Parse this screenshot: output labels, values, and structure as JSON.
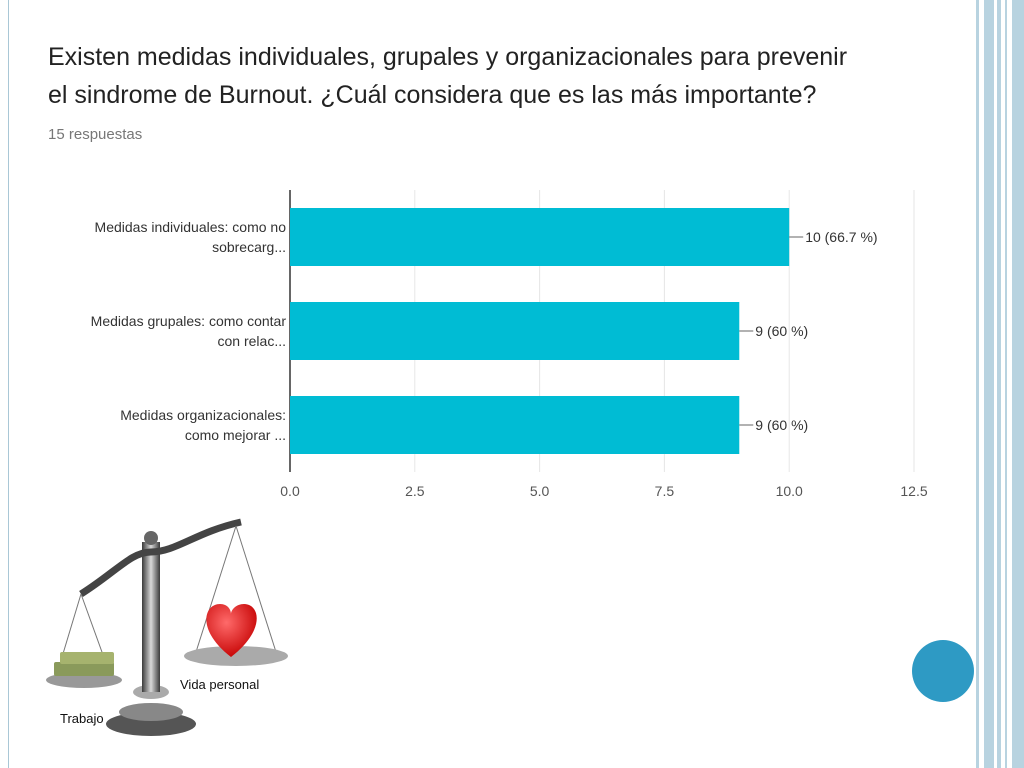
{
  "slide": {
    "title_line1": "Existen medidas individuales, grupales y organizacionales para prevenir",
    "title_line2": "el sindrome de Burnout. ¿Cuál considera que es las más importante?",
    "subtitle": "15 respuestas"
  },
  "illustration": {
    "label_left": "Trabajo",
    "label_right": "Vida personal"
  },
  "colors": {
    "bar": "#00bcd4",
    "accent_circle": "#2e9ac4",
    "border": "#a9c7d6"
  },
  "chart_data": {
    "type": "bar",
    "orientation": "horizontal",
    "categories": [
      "Medidas individuales: como no sobrecarg...",
      "Medidas grupales: como contar con relac...",
      "Medidas organizacionales: como mejorar ..."
    ],
    "category_lines": [
      [
        "Medidas individuales: como no",
        "sobrecarg..."
      ],
      [
        "Medidas grupales: como contar",
        "con relac..."
      ],
      [
        "Medidas organizacionales:",
        "como mejorar ..."
      ]
    ],
    "values": [
      10,
      9,
      9
    ],
    "data_labels": [
      "10 (66.7 %)",
      "9 (60 %)",
      "9 (60 %)"
    ],
    "xlim": [
      0,
      12.5
    ],
    "ticks": [
      "0.0",
      "2.5",
      "5.0",
      "7.5",
      "10.0",
      "12.5"
    ],
    "tick_values": [
      0,
      2.5,
      5,
      7.5,
      10,
      12.5
    ],
    "grid": true,
    "legend": "none"
  }
}
